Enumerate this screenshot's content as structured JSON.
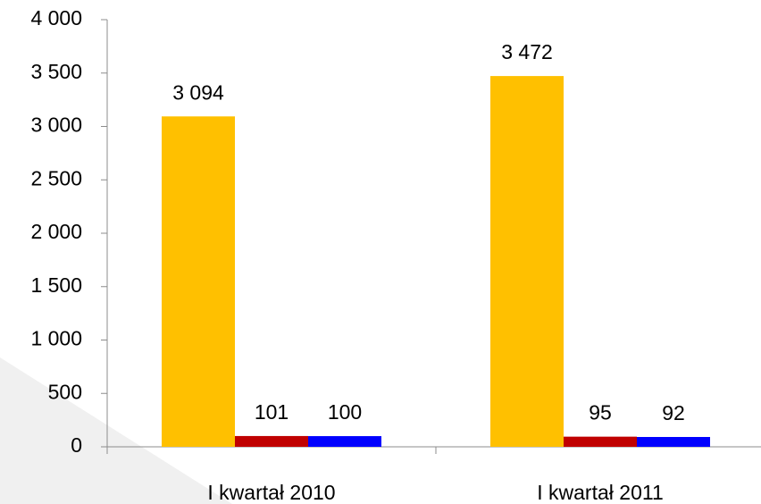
{
  "chart_data": {
    "type": "bar",
    "categories": [
      "I kwartał 2010",
      "I kwartał 2011"
    ],
    "series": [
      {
        "color": "#ffc000",
        "values": [
          3094,
          3472
        ],
        "value_labels": [
          "3 094",
          "3 472"
        ]
      },
      {
        "color": "#c00000",
        "values": [
          101,
          95
        ],
        "value_labels": [
          "101",
          "95"
        ]
      },
      {
        "color": "#0000ff",
        "values": [
          100,
          92
        ],
        "value_labels": [
          "100",
          "92"
        ]
      }
    ],
    "ylim": [
      0,
      4000
    ],
    "yticks": [
      0,
      500,
      {
        "value": 1000,
        "label": "1 000"
      },
      {
        "value": 1500,
        "label": "1 500"
      },
      {
        "value": 2000,
        "label": "2 000"
      },
      {
        "value": 2500,
        "label": "2 500"
      },
      {
        "value": 3000,
        "label": "3 000"
      },
      {
        "value": 3500,
        "label": "3 500"
      },
      {
        "value": 4000,
        "label": "4 000"
      }
    ],
    "grid": false
  }
}
